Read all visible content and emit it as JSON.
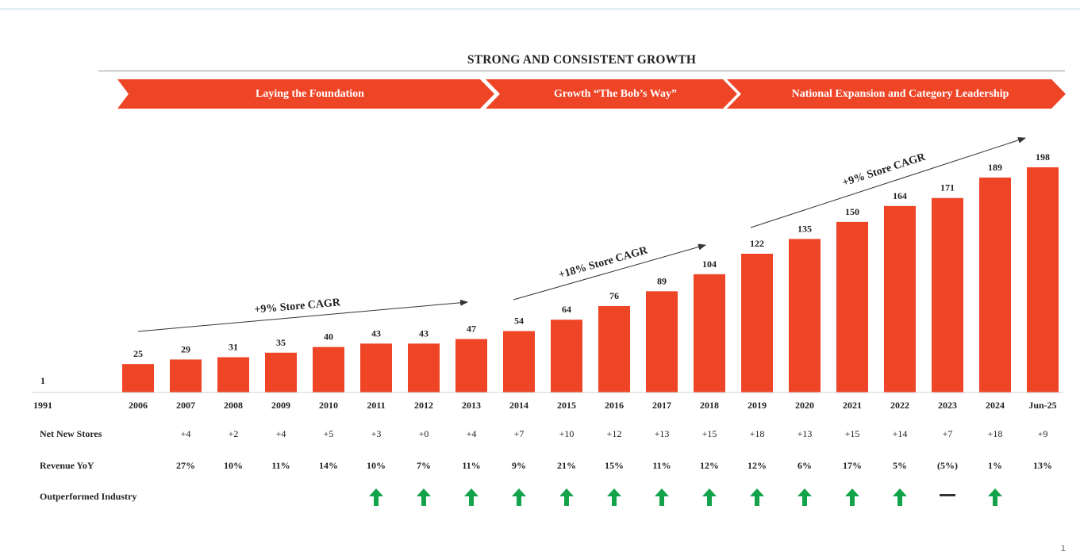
{
  "title": "STRONG AND CONSISTENT  GROWTH",
  "phases": [
    {
      "label": "Laying the Foundation"
    },
    {
      "label": "Growth “The Bob’s Way”"
    },
    {
      "label": "National Expansion and Category Leadership"
    }
  ],
  "chart_data": {
    "type": "bar",
    "title": "STRONG AND CONSISTENT  GROWTH",
    "xlabel": "",
    "ylabel": "",
    "categories": [
      "1991",
      "2006",
      "2007",
      "2008",
      "2009",
      "2010",
      "2011",
      "2012",
      "2013",
      "2014",
      "2015",
      "2016",
      "2017",
      "2018",
      "2019",
      "2020",
      "2021",
      "2022",
      "2023",
      "2024",
      "Jun-25"
    ],
    "values": [
      1,
      25,
      29,
      31,
      35,
      40,
      43,
      43,
      47,
      54,
      64,
      76,
      89,
      104,
      122,
      135,
      150,
      164,
      171,
      189,
      198
    ],
    "color": "#ee4527",
    "ylim": [
      0,
      200
    ],
    "annotations": [
      {
        "text": "+9% Store CAGR"
      },
      {
        "text": "+18% Store CAGR"
      },
      {
        "text": "+9% Store CAGR"
      }
    ]
  },
  "rows": {
    "net_new_stores": {
      "label": "Net New Stores",
      "values": [
        "",
        "",
        "+4",
        "+2",
        "+4",
        "+5",
        "+3",
        "+0",
        "+4",
        "+7",
        "+10",
        "+12",
        "+13",
        "+15",
        "+18",
        "+13",
        "+15",
        "+14",
        "+7",
        "+18",
        "+9"
      ]
    },
    "revenue_yoy": {
      "label": "Revenue YoY",
      "values": [
        "",
        "",
        "27%",
        "10%",
        "11%",
        "14%",
        "10%",
        "7%",
        "11%",
        "9%",
        "21%",
        "15%",
        "11%",
        "12%",
        "12%",
        "6%",
        "17%",
        "5%",
        "(5%)",
        "1%",
        "13%"
      ]
    },
    "outperformed": {
      "label": "Outperformed Industry",
      "values": [
        "",
        "",
        "",
        "",
        "",
        "",
        "up",
        "up",
        "up",
        "up",
        "up",
        "up",
        "up",
        "up",
        "up",
        "up",
        "up",
        "up",
        "flat",
        "up",
        ""
      ]
    }
  },
  "colors": {
    "bar": "#ee4527",
    "up_arrow": "#13a34a",
    "flat_dash": "#333333",
    "chevron": "#ee4527"
  },
  "page_number": "1"
}
